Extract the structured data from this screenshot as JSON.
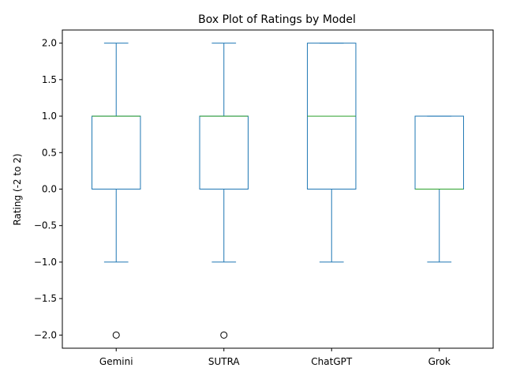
{
  "chart_data": {
    "type": "box",
    "title": "Box Plot of Ratings by Model",
    "xlabel": "",
    "ylabel": "Rating (-2 to 2)",
    "categories": [
      "Gemini",
      "SUTRA",
      "ChatGPT",
      "Grok"
    ],
    "boxes": [
      {
        "name": "Gemini",
        "whislo": -1,
        "q1": 0,
        "med": 1,
        "q3": 1,
        "whishi": 2,
        "fliers": [
          -2
        ]
      },
      {
        "name": "SUTRA",
        "whislo": -1,
        "q1": 0,
        "med": 1,
        "q3": 1,
        "whishi": 2,
        "fliers": [
          -2
        ]
      },
      {
        "name": "ChatGPT",
        "whislo": -1,
        "q1": 0,
        "med": 1,
        "q3": 2,
        "whishi": 2,
        "fliers": []
      },
      {
        "name": "Grok",
        "whislo": -1,
        "q1": 0,
        "med": 0,
        "q3": 1,
        "whishi": 1,
        "fliers": []
      }
    ],
    "ylim": [
      -2.18,
      2.18
    ],
    "yticks": [
      -2.0,
      -1.5,
      -1.0,
      -0.5,
      0.0,
      0.5,
      1.0,
      1.5,
      2.0
    ],
    "ytick_labels": [
      "−2.0",
      "−1.5",
      "−1.0",
      "−0.5",
      "0.0",
      "0.5",
      "1.0",
      "1.5",
      "2.0"
    ],
    "grid": false,
    "colors": {
      "box": "#1f77b4",
      "median": "#2ca02c",
      "flier": "#000000",
      "axis": "#000000"
    }
  }
}
